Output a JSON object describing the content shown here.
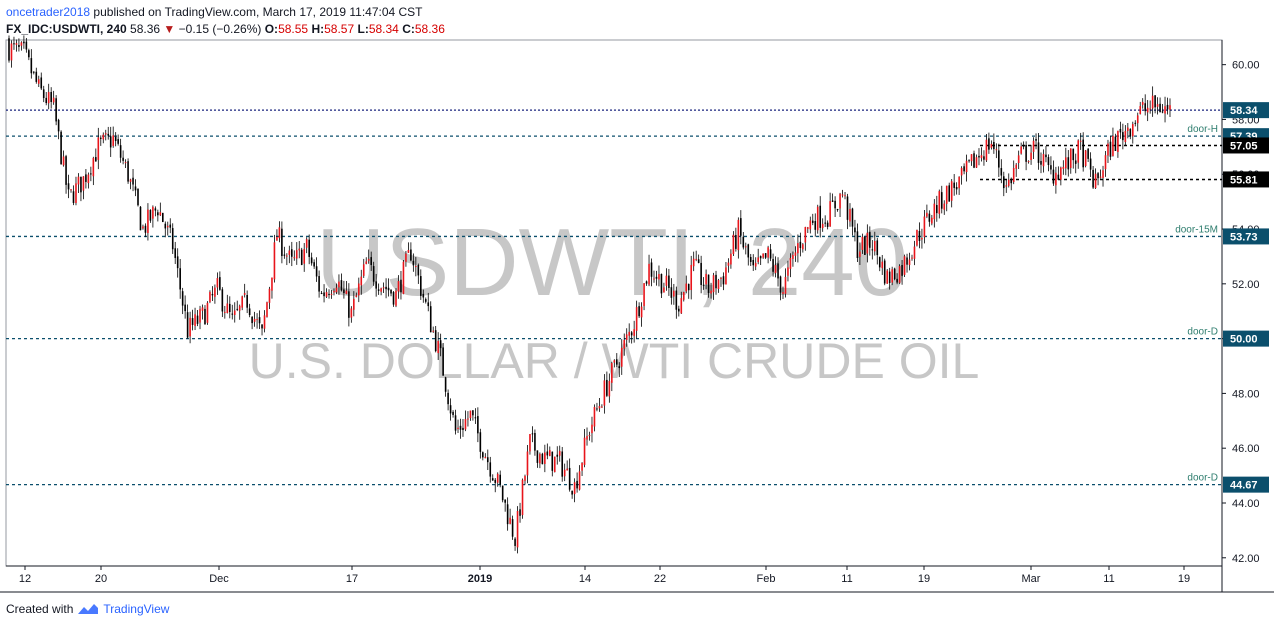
{
  "header": {
    "author": "oncetrader2018",
    "published_text": "published on TradingView.com, March 17, 2019 11:47:04 CST",
    "symbol": "FX_IDC:USDWTI, 240",
    "last": "58.36",
    "change": "−0.15 (−0.26%)",
    "open_label": "O:",
    "open": "58.55",
    "high_label": "H:",
    "high": "58.57",
    "low_label": "L:",
    "low": "58.34",
    "close_label": "C:",
    "close": "58.36"
  },
  "watermark": {
    "title": "USDWTI, 240",
    "subtitle": "U.S. DOLLAR / WTI CRUDE OIL"
  },
  "footer": {
    "created_with": "Created with",
    "brand": "TradingView"
  },
  "colors": {
    "up": "#e8151b",
    "down": "#000000",
    "level": "#0b4f6c",
    "label_bg": "#0b4f6c",
    "blue_level": "#1a237e"
  },
  "chart_data": {
    "type": "candlestick",
    "title": "USDWTI, 240",
    "subtitle": "U.S. DOLLAR / WTI CRUDE OIL",
    "ylim": [
      41.7,
      60.9
    ],
    "yticks": [
      "60.00",
      "58.00",
      "56.00",
      "54.00",
      "52.00",
      "50.00",
      "48.00",
      "46.00",
      "44.00",
      "42.00"
    ],
    "xticks": [
      {
        "label": "12",
        "bold": false
      },
      {
        "label": "20",
        "bold": false
      },
      {
        "label": "Dec",
        "bold": false
      },
      {
        "label": "17",
        "bold": false
      },
      {
        "label": "2019",
        "bold": true
      },
      {
        "label": "14",
        "bold": false
      },
      {
        "label": "22",
        "bold": false
      },
      {
        "label": "Feb",
        "bold": false
      },
      {
        "label": "11",
        "bold": false
      },
      {
        "label": "19",
        "bold": false
      },
      {
        "label": "Mar",
        "bold": false
      },
      {
        "label": "11",
        "bold": false
      },
      {
        "label": "19",
        "bold": false
      }
    ],
    "levels": [
      {
        "value": 58.34,
        "label": "",
        "price": "58.34",
        "style": "blue",
        "price_label": true
      },
      {
        "value": 57.39,
        "label": "door-H",
        "price": "57.39",
        "style": "dotted",
        "price_label": true
      },
      {
        "value": 57.05,
        "label": "",
        "price": "57.05",
        "style": "black",
        "price_label": true
      },
      {
        "value": 55.81,
        "label": "",
        "price": "55.81",
        "style": "black",
        "price_label": true
      },
      {
        "value": 53.73,
        "label": "door-15M",
        "price": "53.73",
        "style": "dotted",
        "price_label": true
      },
      {
        "value": 50.0,
        "label": "door-D",
        "price": "50.00",
        "style": "dotted",
        "price_label": true
      },
      {
        "value": 44.67,
        "label": "door-D",
        "price": "44.67",
        "style": "dotted",
        "price_label": true
      }
    ],
    "path": [
      60.6,
      60.4,
      59.1,
      58.4,
      55.1,
      55.8,
      57.0,
      57.3,
      56.0,
      54.0,
      54.8,
      53.4,
      50.3,
      50.8,
      51.8,
      50.6,
      51.4,
      50.1,
      53.8,
      52.7,
      53.3,
      51.6,
      52.2,
      50.9,
      52.7,
      52.0,
      51.6,
      53.2,
      51.2,
      49.3,
      46.6,
      47.2,
      45.8,
      44.5,
      42.7,
      46.2,
      45.6,
      45.5,
      44.6,
      46.7,
      48.1,
      49.3,
      50.6,
      52.6,
      52.0,
      51.3,
      52.6,
      51.8,
      52.3,
      53.9,
      52.4,
      53.0,
      51.8,
      53.4,
      54.4,
      54.5,
      55.3,
      53.3,
      53.5,
      52.2,
      52.6,
      53.7,
      54.6,
      55.3,
      55.8,
      56.6,
      57.2,
      55.5,
      56.7,
      56.9,
      56.0,
      56.3,
      56.9,
      55.6,
      57.0,
      57.6,
      58.3,
      58.5,
      58.36
    ]
  }
}
